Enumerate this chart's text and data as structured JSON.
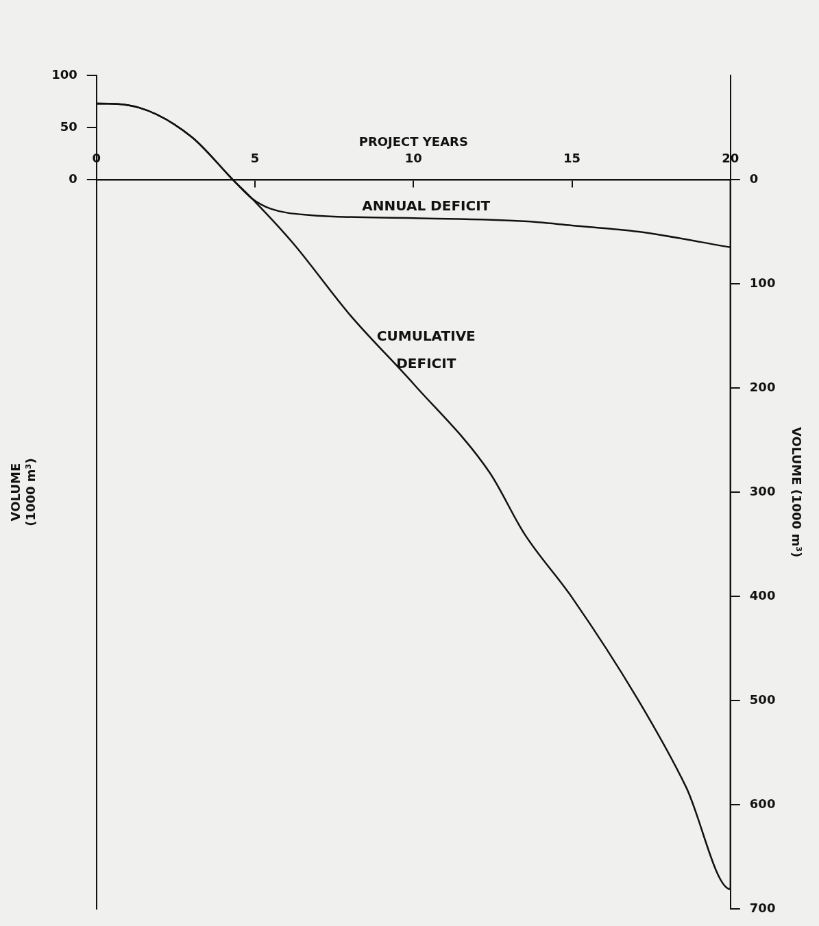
{
  "chart_data": {
    "type": "line",
    "xlabel": "PROJECT YEARS",
    "ylabel": "VOLUME\n(1000 m³)",
    "y2label": "VOLUME (1000 m³)",
    "xlim": [
      0,
      20
    ],
    "xticks": [
      0,
      5,
      10,
      15,
      20
    ],
    "ylim": [
      -700,
      100
    ],
    "yticks": [
      0,
      50,
      100
    ],
    "y2lim": [
      700,
      -100
    ],
    "y2ticks": [
      0,
      100,
      200,
      300,
      400,
      500,
      600,
      700
    ],
    "grid": false,
    "legend": false,
    "marker": "none",
    "line_style": "solid",
    "series": [
      {
        "name": "ANNUAL DEFICIT",
        "color": "#111111",
        "axis": "y2",
        "x": [
          0,
          0,
          1.35,
          3,
          4.3,
          4.9,
          5.5,
          6.7,
          10,
          13.5,
          15,
          17.1,
          20
        ],
        "values": [
          0,
          -73,
          -69,
          -41,
          0,
          18,
          28,
          34,
          37,
          40,
          44,
          50,
          65
        ]
      },
      {
        "name": "CUMULATIVE\nDEFICIT",
        "color": "#111111",
        "axis": "y2",
        "x": [
          0,
          0,
          1.35,
          3,
          4.3,
          4.9,
          6.2,
          8,
          10,
          12.4,
          13.5,
          15,
          17.1,
          18.6,
          20,
          20
        ],
        "values": [
          0,
          -73,
          -69,
          -41,
          0,
          18,
          61,
          130,
          196,
          281,
          340,
          401,
          500,
          583,
          681,
          0
        ]
      }
    ]
  }
}
